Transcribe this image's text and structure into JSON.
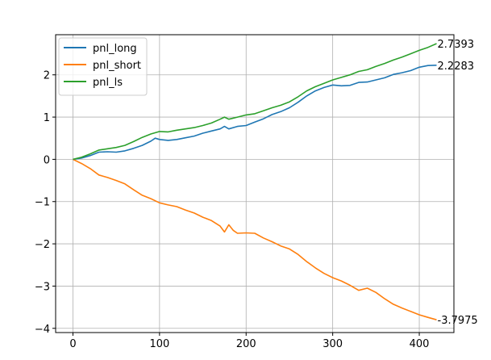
{
  "chart_data": {
    "type": "line",
    "title": "",
    "xlabel": "",
    "ylabel": "",
    "xlim": [
      -20,
      440
    ],
    "ylim": [
      -4.1,
      2.95
    ],
    "xticks": [
      0,
      100,
      200,
      300,
      400
    ],
    "yticks": [
      -4,
      -3,
      -2,
      -1,
      0,
      1,
      2
    ],
    "xtick_labels": [
      "0",
      "100",
      "200",
      "300",
      "400"
    ],
    "ytick_labels": [
      "−4",
      "−3",
      "−2",
      "−1",
      "0",
      "1",
      "2"
    ],
    "grid": true,
    "legend_position": "top-left",
    "series": [
      {
        "name": "pnl_long",
        "color": "#1f77b4",
        "end_label": "2.2283",
        "points": [
          [
            0,
            0
          ],
          [
            10,
            0.03
          ],
          [
            20,
            0.09
          ],
          [
            30,
            0.17
          ],
          [
            40,
            0.18
          ],
          [
            50,
            0.17
          ],
          [
            60,
            0.2
          ],
          [
            70,
            0.26
          ],
          [
            80,
            0.33
          ],
          [
            90,
            0.43
          ],
          [
            95,
            0.5
          ],
          [
            100,
            0.47
          ],
          [
            110,
            0.45
          ],
          [
            120,
            0.47
          ],
          [
            130,
            0.51
          ],
          [
            140,
            0.55
          ],
          [
            150,
            0.62
          ],
          [
            160,
            0.67
          ],
          [
            170,
            0.72
          ],
          [
            175,
            0.78
          ],
          [
            180,
            0.72
          ],
          [
            190,
            0.78
          ],
          [
            200,
            0.8
          ],
          [
            210,
            0.88
          ],
          [
            220,
            0.96
          ],
          [
            230,
            1.06
          ],
          [
            240,
            1.13
          ],
          [
            250,
            1.22
          ],
          [
            260,
            1.35
          ],
          [
            270,
            1.5
          ],
          [
            280,
            1.62
          ],
          [
            290,
            1.7
          ],
          [
            300,
            1.76
          ],
          [
            310,
            1.74
          ],
          [
            320,
            1.75
          ],
          [
            330,
            1.82
          ],
          [
            340,
            1.83
          ],
          [
            350,
            1.88
          ],
          [
            360,
            1.93
          ],
          [
            370,
            2.01
          ],
          [
            380,
            2.05
          ],
          [
            390,
            2.1
          ],
          [
            400,
            2.18
          ],
          [
            410,
            2.22
          ],
          [
            420,
            2.2283
          ]
        ]
      },
      {
        "name": "pnl_short",
        "color": "#ff7f0e",
        "end_label": "-3.7975",
        "points": [
          [
            0,
            0
          ],
          [
            10,
            -0.1
          ],
          [
            20,
            -0.22
          ],
          [
            30,
            -0.37
          ],
          [
            40,
            -0.43
          ],
          [
            50,
            -0.5
          ],
          [
            60,
            -0.58
          ],
          [
            70,
            -0.72
          ],
          [
            80,
            -0.85
          ],
          [
            90,
            -0.93
          ],
          [
            100,
            -1.03
          ],
          [
            110,
            -1.08
          ],
          [
            120,
            -1.12
          ],
          [
            130,
            -1.2
          ],
          [
            140,
            -1.27
          ],
          [
            150,
            -1.37
          ],
          [
            160,
            -1.45
          ],
          [
            170,
            -1.58
          ],
          [
            175,
            -1.72
          ],
          [
            180,
            -1.55
          ],
          [
            185,
            -1.68
          ],
          [
            190,
            -1.75
          ],
          [
            200,
            -1.74
          ],
          [
            210,
            -1.75
          ],
          [
            220,
            -1.86
          ],
          [
            230,
            -1.95
          ],
          [
            240,
            -2.05
          ],
          [
            250,
            -2.12
          ],
          [
            260,
            -2.25
          ],
          [
            270,
            -2.42
          ],
          [
            280,
            -2.57
          ],
          [
            290,
            -2.7
          ],
          [
            300,
            -2.8
          ],
          [
            310,
            -2.88
          ],
          [
            320,
            -2.98
          ],
          [
            330,
            -3.1
          ],
          [
            340,
            -3.05
          ],
          [
            350,
            -3.15
          ],
          [
            360,
            -3.3
          ],
          [
            370,
            -3.43
          ],
          [
            380,
            -3.52
          ],
          [
            390,
            -3.6
          ],
          [
            400,
            -3.68
          ],
          [
            410,
            -3.74
          ],
          [
            420,
            -3.7975
          ]
        ]
      },
      {
        "name": "pnl_ls",
        "color": "#2ca02c",
        "end_label": "2.7393",
        "points": [
          [
            0,
            0
          ],
          [
            10,
            0.05
          ],
          [
            20,
            0.13
          ],
          [
            30,
            0.22
          ],
          [
            40,
            0.25
          ],
          [
            50,
            0.28
          ],
          [
            60,
            0.33
          ],
          [
            70,
            0.42
          ],
          [
            80,
            0.52
          ],
          [
            90,
            0.6
          ],
          [
            100,
            0.66
          ],
          [
            110,
            0.65
          ],
          [
            120,
            0.69
          ],
          [
            130,
            0.72
          ],
          [
            140,
            0.75
          ],
          [
            150,
            0.8
          ],
          [
            160,
            0.86
          ],
          [
            170,
            0.95
          ],
          [
            175,
            1.0
          ],
          [
            180,
            0.95
          ],
          [
            190,
            1.0
          ],
          [
            200,
            1.05
          ],
          [
            210,
            1.08
          ],
          [
            220,
            1.15
          ],
          [
            230,
            1.22
          ],
          [
            240,
            1.28
          ],
          [
            250,
            1.36
          ],
          [
            260,
            1.48
          ],
          [
            270,
            1.62
          ],
          [
            280,
            1.72
          ],
          [
            290,
            1.8
          ],
          [
            300,
            1.88
          ],
          [
            310,
            1.94
          ],
          [
            320,
            2.0
          ],
          [
            330,
            2.08
          ],
          [
            340,
            2.12
          ],
          [
            350,
            2.2
          ],
          [
            360,
            2.27
          ],
          [
            370,
            2.35
          ],
          [
            380,
            2.42
          ],
          [
            390,
            2.5
          ],
          [
            400,
            2.58
          ],
          [
            410,
            2.65
          ],
          [
            420,
            2.7393
          ]
        ]
      }
    ]
  }
}
